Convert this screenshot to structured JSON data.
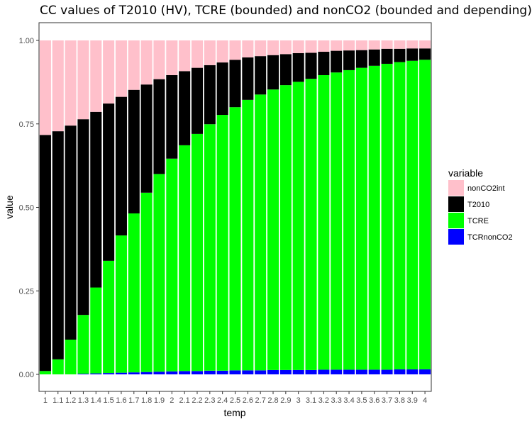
{
  "chart_data": {
    "type": "bar",
    "stacked": true,
    "title": "CC values of T2010 (HV), TCRE (bounded) and nonCO2 (bounded and depending)",
    "xlabel": "temp",
    "ylabel": "value",
    "ylim": [
      0,
      1
    ],
    "yticks": [
      "0.00",
      "0.25",
      "0.50",
      "0.75",
      "1.00"
    ],
    "categories": [
      "1",
      "1.1",
      "1.2",
      "1.3",
      "1.4",
      "1.5",
      "1.6",
      "1.7",
      "1.8",
      "1.9",
      "2",
      "2.1",
      "2.2",
      "2.3",
      "2.4",
      "2.5",
      "2.6",
      "2.7",
      "2.8",
      "2.9",
      "3",
      "3.1",
      "3.2",
      "3.3",
      "3.4",
      "3.5",
      "3.6",
      "3.7",
      "3.8",
      "3.9",
      "4"
    ],
    "legend": {
      "title": "variable",
      "position": "right",
      "entries": [
        "nonCO2int",
        "T2010",
        "TCRE",
        "TCRnonCO2"
      ]
    },
    "series": [
      {
        "name": "TCRnonCO2",
        "color": "#0000FF",
        "values": [
          0.0,
          0.0,
          0.0,
          0.002,
          0.003,
          0.004,
          0.005,
          0.006,
          0.007,
          0.008,
          0.009,
          0.01,
          0.01,
          0.011,
          0.011,
          0.012,
          0.012,
          0.012,
          0.013,
          0.013,
          0.013,
          0.013,
          0.014,
          0.014,
          0.014,
          0.014,
          0.014,
          0.014,
          0.015,
          0.015,
          0.015
        ]
      },
      {
        "name": "TCRE",
        "color": "#00FF00",
        "values": [
          0.01,
          0.045,
          0.104,
          0.176,
          0.257,
          0.336,
          0.411,
          0.476,
          0.537,
          0.592,
          0.637,
          0.676,
          0.71,
          0.738,
          0.766,
          0.788,
          0.81,
          0.826,
          0.84,
          0.853,
          0.863,
          0.872,
          0.882,
          0.89,
          0.897,
          0.904,
          0.91,
          0.916,
          0.92,
          0.924,
          0.927
        ]
      },
      {
        "name": "T2010",
        "color": "#000000",
        "values": [
          0.707,
          0.683,
          0.641,
          0.586,
          0.526,
          0.471,
          0.415,
          0.37,
          0.324,
          0.284,
          0.25,
          0.222,
          0.198,
          0.177,
          0.157,
          0.142,
          0.127,
          0.115,
          0.103,
          0.093,
          0.086,
          0.078,
          0.07,
          0.065,
          0.059,
          0.053,
          0.049,
          0.045,
          0.04,
          0.037,
          0.034
        ]
      },
      {
        "name": "nonCO2int",
        "color": "#FFC0CB",
        "values": [
          0.283,
          0.272,
          0.255,
          0.236,
          0.214,
          0.189,
          0.169,
          0.148,
          0.132,
          0.116,
          0.104,
          0.092,
          0.082,
          0.074,
          0.066,
          0.058,
          0.051,
          0.047,
          0.044,
          0.041,
          0.038,
          0.037,
          0.034,
          0.031,
          0.03,
          0.029,
          0.027,
          0.025,
          0.025,
          0.024,
          0.024
        ]
      }
    ],
    "grid": false,
    "panel_border": true
  }
}
